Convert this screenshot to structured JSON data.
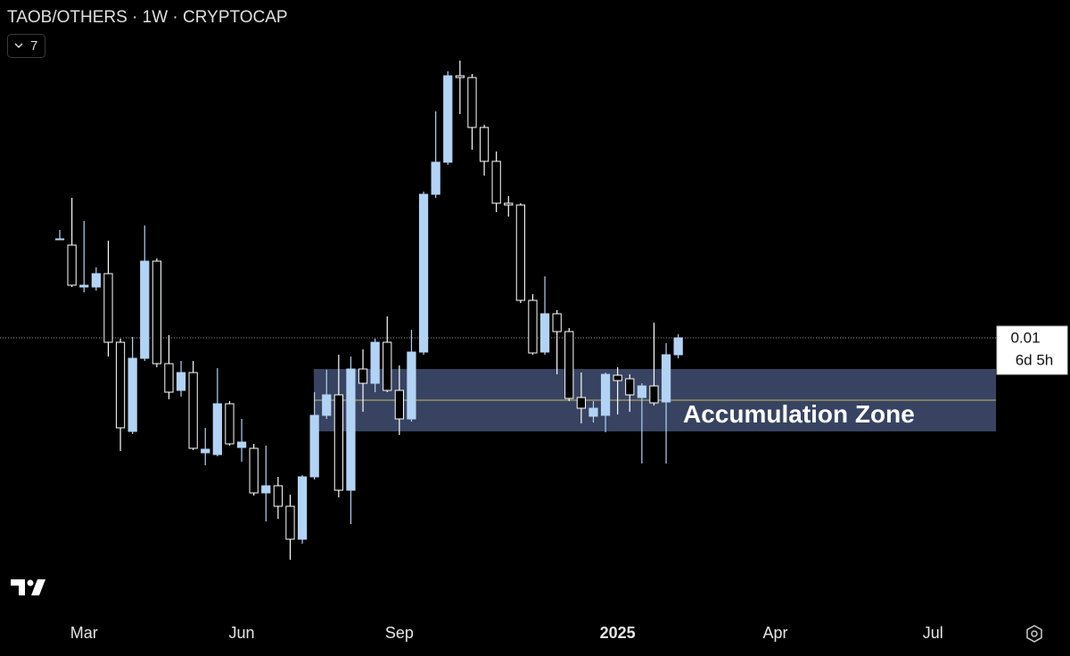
{
  "chart_data": {
    "type": "candlestick",
    "title": "TAOB/OTHERS · 1W · CRYPTOCAP",
    "indicator_count": 7,
    "categories": [
      null,
      null,
      null,
      null,
      null,
      null,
      null,
      null,
      null,
      null,
      null,
      null,
      null,
      null,
      null,
      null,
      null,
      null,
      null,
      null,
      null,
      null,
      null,
      null,
      null,
      null,
      null,
      null,
      null,
      null,
      null,
      null,
      null,
      null,
      null,
      null,
      null,
      null,
      null,
      null,
      null,
      null,
      null,
      null,
      null,
      null,
      null,
      null,
      null,
      null,
      null,
      null
    ],
    "open": [
      0.01111,
      0.01104,
      0.01057,
      0.01057,
      0.01072,
      0.00995,
      0.00895,
      0.00977,
      0.01086,
      0.00971,
      0.00941,
      0.00961,
      0.00871,
      0.00869,
      0.00926,
      0.00877,
      0.00876,
      0.00826,
      0.00834,
      0.00811,
      0.00774,
      0.00844,
      0.00913,
      0.00936,
      0.00829,
      0.00965,
      0.00949,
      0.00995,
      0.00941,
      0.00909,
      0.00984,
      0.01161,
      0.01197,
      0.01294,
      0.01292,
      0.01236,
      0.01198,
      0.01151,
      0.01149,
      0.01042,
      0.00984,
      0.01027,
      0.01007,
      0.00933,
      0.00912,
      0.00913,
      0.00958,
      0.00954,
      0.00933,
      0.00946,
      0.00928,
      0.00981
    ],
    "high": [
      0.01121,
      0.01157,
      0.01131,
      0.01079,
      0.01109,
      0.00999,
      0.01001,
      0.01126,
      0.01089,
      0.01003,
      0.00974,
      0.00974,
      0.00899,
      0.00966,
      0.00929,
      0.00909,
      0.00881,
      0.00879,
      0.00844,
      0.00824,
      0.00846,
      0.00939,
      0.00964,
      0.00981,
      0.00979,
      0.00987,
      0.00999,
      0.01024,
      0.00969,
      0.01009,
      0.01164,
      0.01254,
      0.01299,
      0.01311,
      0.01296,
      0.01239,
      0.01209,
      0.01159,
      0.01151,
      0.01049,
      0.01069,
      0.01031,
      0.01011,
      0.00961,
      0.00929,
      0.00961,
      0.00967,
      0.00959,
      0.00949,
      0.01017,
      0.00994,
      0.01004
    ],
    "low": [
      0.01111,
      0.01057,
      0.01051,
      0.01053,
      0.00979,
      0.00873,
      0.00892,
      0.00974,
      0.00967,
      0.00931,
      0.00934,
      0.00874,
      0.00857,
      0.00867,
      0.00879,
      0.00861,
      0.00823,
      0.00794,
      0.00797,
      0.00751,
      0.00769,
      0.00841,
      0.00909,
      0.00821,
      0.00791,
      0.00917,
      0.00939,
      0.00939,
      0.00891,
      0.00906,
      0.00981,
      0.01157,
      0.01194,
      0.01251,
      0.01211,
      0.01182,
      0.01141,
      0.01136,
      0.01039,
      0.00981,
      0.00981,
      0.00959,
      0.00929,
      0.00904,
      0.00905,
      0.00894,
      0.00914,
      0.00917,
      0.00859,
      0.00924,
      0.00859,
      0.00977
    ],
    "close": [
      0.01111,
      0.01059,
      0.01059,
      0.01072,
      0.00995,
      0.00899,
      0.00977,
      0.01086,
      0.00971,
      0.00939,
      0.00961,
      0.00876,
      0.00875,
      0.00926,
      0.00881,
      0.00883,
      0.00826,
      0.00834,
      0.00811,
      0.00774,
      0.00844,
      0.00913,
      0.00936,
      0.00829,
      0.00965,
      0.00949,
      0.00995,
      0.00941,
      0.00909,
      0.00984,
      0.01161,
      0.01197,
      0.01294,
      0.01292,
      0.01236,
      0.01198,
      0.01151,
      0.01149,
      0.01042,
      0.00983,
      0.01027,
      0.01007,
      0.00932,
      0.00921,
      0.00921,
      0.00959,
      0.00952,
      0.00936,
      0.00946,
      0.00927,
      0.00981,
      0.01
    ],
    "up_color": "#b3d3f5",
    "down_color": "#000000",
    "outline_color": "#ffffff",
    "xlim": [
      -4.93,
      77.2
    ],
    "ylim": [
      0.00689,
      0.01379
    ],
    "xticks": [
      {
        "value": 2,
        "label": "Mar"
      },
      {
        "value": 15,
        "label": "Jun"
      },
      {
        "value": 28,
        "label": "Sep"
      },
      {
        "value": 46,
        "label": "2025"
      },
      {
        "value": 59,
        "label": "Apr"
      },
      {
        "value": 72,
        "label": "Jul"
      }
    ],
    "last_price": 0.01,
    "countdown": "6d 5h",
    "zone": {
      "label": "Accumulation Zone",
      "start": 21,
      "top": 0.00965,
      "bottom": 0.00895,
      "mid": 0.0093,
      "color": "#3d4a6b",
      "line_color": "#c8b860"
    }
  }
}
